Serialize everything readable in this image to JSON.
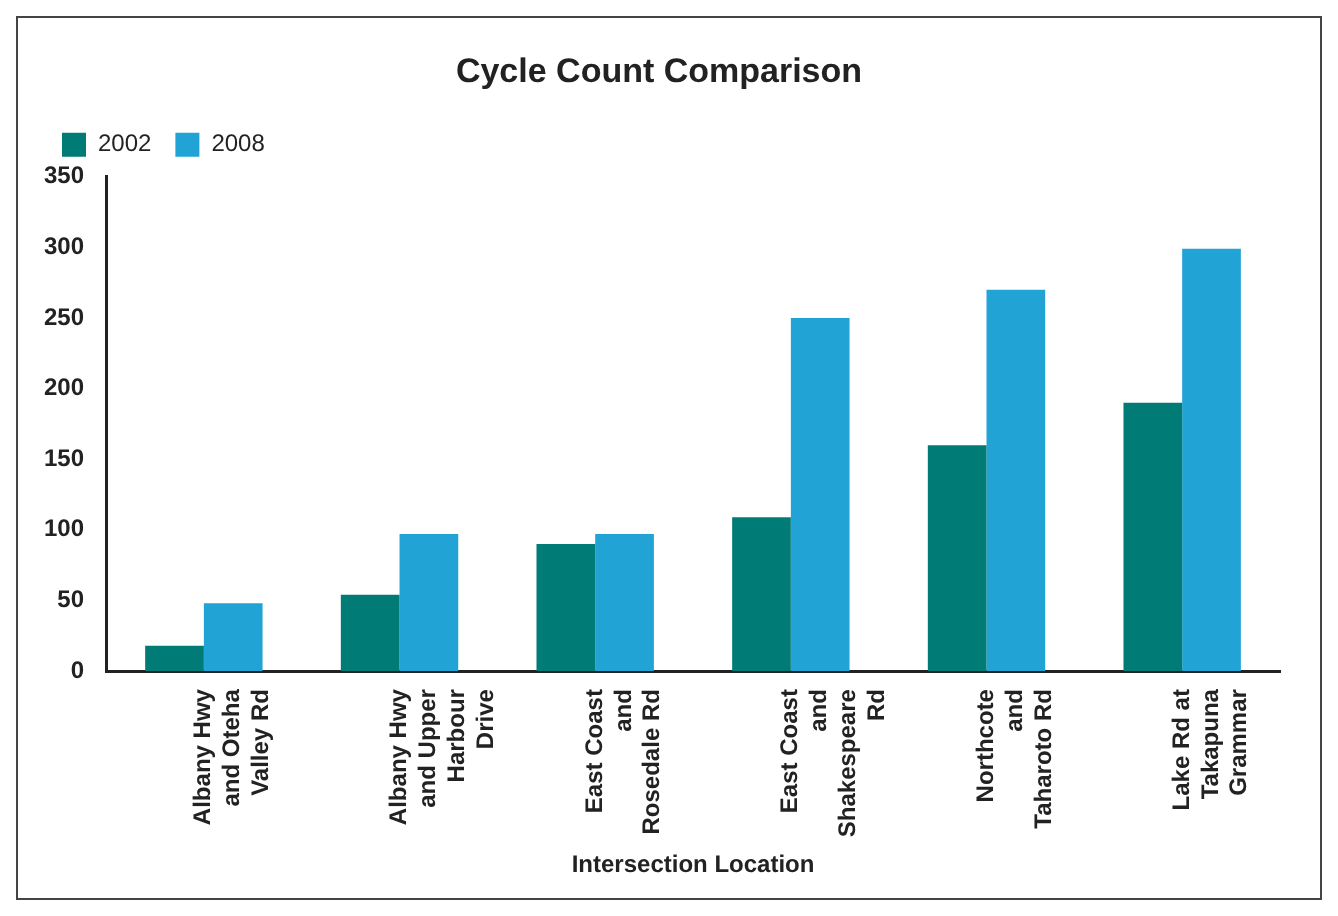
{
  "chart_data": {
    "type": "bar",
    "title": "Cycle Count Comparison",
    "xlabel": "Intersection Location",
    "categories": [
      "Albany Hwy and Oteha Valley Rd",
      "Albany Hwy and Upper Harbour Drive",
      "East Coast and Rosedale Rd",
      "East Coast and Shakespeare Rd",
      "Northcote and Taharoto Rd",
      "Lake Rd at Takapuna Grammar"
    ],
    "series": [
      {
        "name": "2002",
        "color": "#007b76",
        "values": [
          18,
          54,
          90,
          109,
          160,
          190
        ]
      },
      {
        "name": "2008",
        "color": "#22a3d6",
        "values": [
          48,
          97,
          97,
          250,
          270,
          299
        ]
      }
    ],
    "ylim": [
      0,
      350
    ],
    "yticks": [
      0,
      50,
      100,
      150,
      200,
      250,
      300,
      350
    ],
    "grid": false,
    "legend": "top left"
  }
}
